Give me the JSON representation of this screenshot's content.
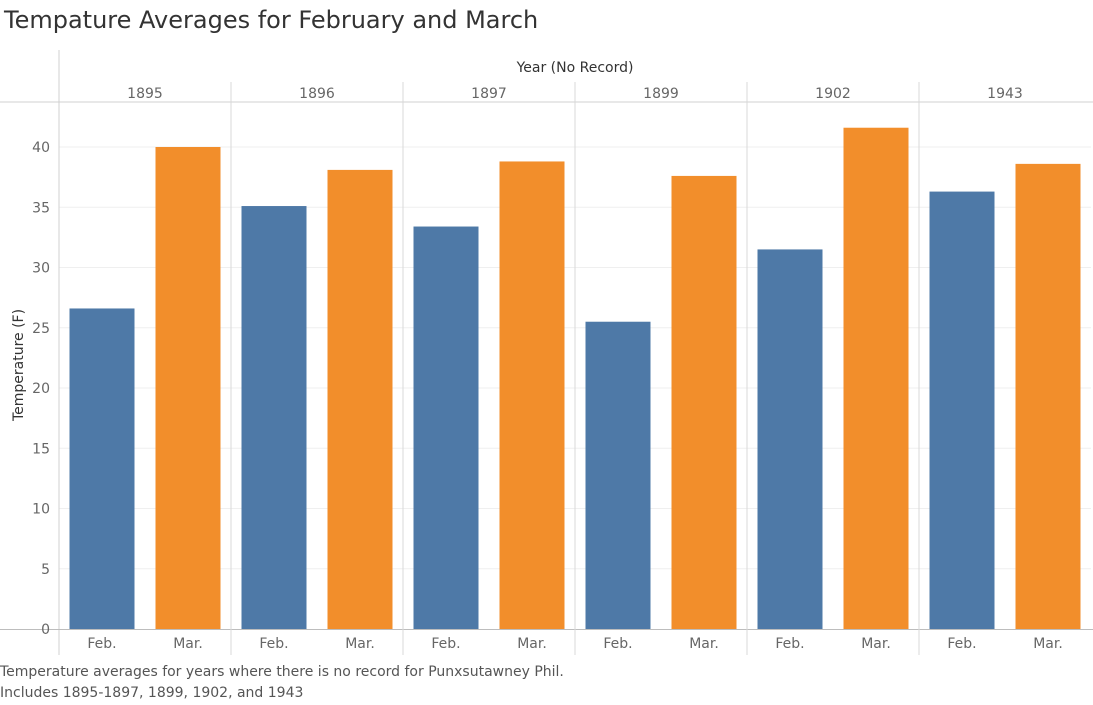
{
  "title": "Tempature Averages for February and March",
  "caption": {
    "line1": "Temperature averages for years where there is no record for Punxsutawney Phil.",
    "line2": "Includes 1895-1897, 1899, 1902, and 1943"
  },
  "chart_data": {
    "type": "bar",
    "column_header": "Year (No Record)",
    "ylabel": "Temperature (F)",
    "xlabel": "",
    "ylim": [
      0,
      44
    ],
    "yticks": [
      0,
      5,
      10,
      15,
      20,
      25,
      30,
      35,
      40
    ],
    "groups": [
      "1895",
      "1896",
      "1897",
      "1899",
      "1902",
      "1943"
    ],
    "categories": [
      "Feb.",
      "Mar."
    ],
    "colors": {
      "Feb.": "#4e79a7",
      "Mar.": "#f28e2b"
    },
    "grid": true,
    "values": {
      "1895": {
        "Feb.": 26.6,
        "Mar.": 40.0
      },
      "1896": {
        "Feb.": 35.1,
        "Mar.": 38.1
      },
      "1897": {
        "Feb.": 33.4,
        "Mar.": 38.8
      },
      "1899": {
        "Feb.": 25.5,
        "Mar.": 37.6
      },
      "1902": {
        "Feb.": 31.5,
        "Mar.": 41.6
      },
      "1943": {
        "Feb.": 36.3,
        "Mar.": 38.6
      }
    }
  }
}
